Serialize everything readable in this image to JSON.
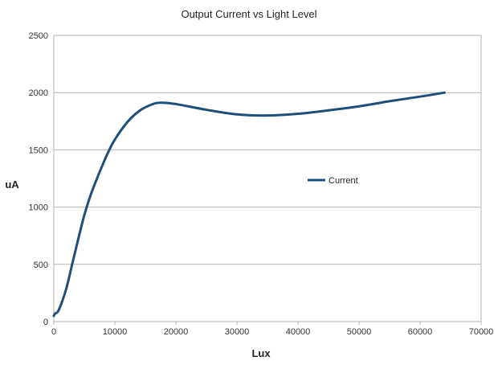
{
  "chart_data": {
    "type": "line",
    "title": "Output Current vs Light Level",
    "xlabel": "Lux",
    "ylabel": "uA",
    "xlim": [
      0,
      70000
    ],
    "ylim": [
      0,
      2500
    ],
    "x_ticks": [
      "0",
      "10000",
      "20000",
      "30000",
      "40000",
      "50000",
      "60000",
      "70000"
    ],
    "y_ticks": [
      "0",
      "500",
      "1000",
      "1500",
      "2000",
      "2500"
    ],
    "grid": "horizontal",
    "legend_position": "right-middle",
    "smooth": true,
    "series": [
      {
        "name": "Current",
        "color": "#1f4e79",
        "points": [
          [
            0,
            50
          ],
          [
            200,
            70
          ],
          [
            800,
            100
          ],
          [
            2000,
            280
          ],
          [
            3000,
            500
          ],
          [
            4000,
            720
          ],
          [
            5000,
            930
          ],
          [
            6000,
            1100
          ],
          [
            7000,
            1240
          ],
          [
            8000,
            1370
          ],
          [
            9000,
            1490
          ],
          [
            10000,
            1590
          ],
          [
            12000,
            1740
          ],
          [
            14000,
            1840
          ],
          [
            16000,
            1895
          ],
          [
            17500,
            1912
          ],
          [
            20000,
            1900
          ],
          [
            25000,
            1850
          ],
          [
            30000,
            1810
          ],
          [
            35000,
            1800
          ],
          [
            40000,
            1815
          ],
          [
            45000,
            1845
          ],
          [
            50000,
            1880
          ],
          [
            55000,
            1925
          ],
          [
            60000,
            1965
          ],
          [
            64000,
            2000
          ]
        ]
      }
    ]
  }
}
